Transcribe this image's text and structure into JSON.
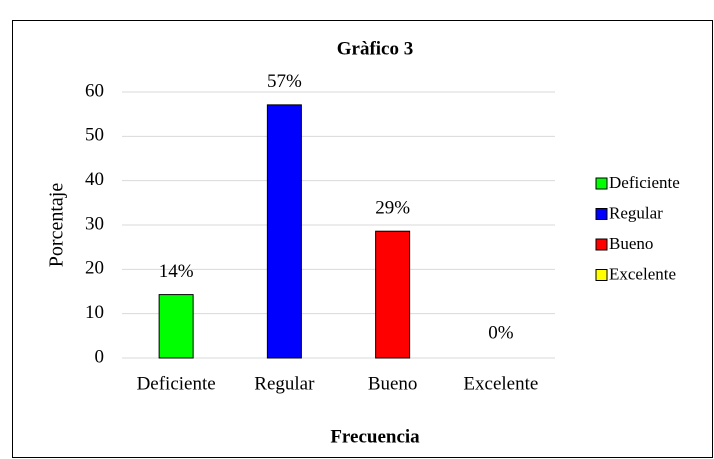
{
  "chart_data": {
    "type": "bar",
    "title": "Gràfico 3",
    "x_label": "Frecuencia",
    "y_label": "Porcentaje",
    "categories": [
      "Deficiente",
      "Regular",
      "Bueno",
      "Excelente"
    ],
    "values": [
      14.3,
      57.1,
      28.6,
      0
    ],
    "value_labels": [
      "14%",
      "57%",
      "29%",
      "0%"
    ],
    "colors": [
      "#00ff00",
      "#0000ff",
      "#ff0000",
      "#ffff00"
    ],
    "ylim": [
      0,
      60
    ],
    "yticks": [
      0,
      10,
      20,
      30,
      40,
      50,
      60
    ],
    "grid": true,
    "legend": "right"
  }
}
